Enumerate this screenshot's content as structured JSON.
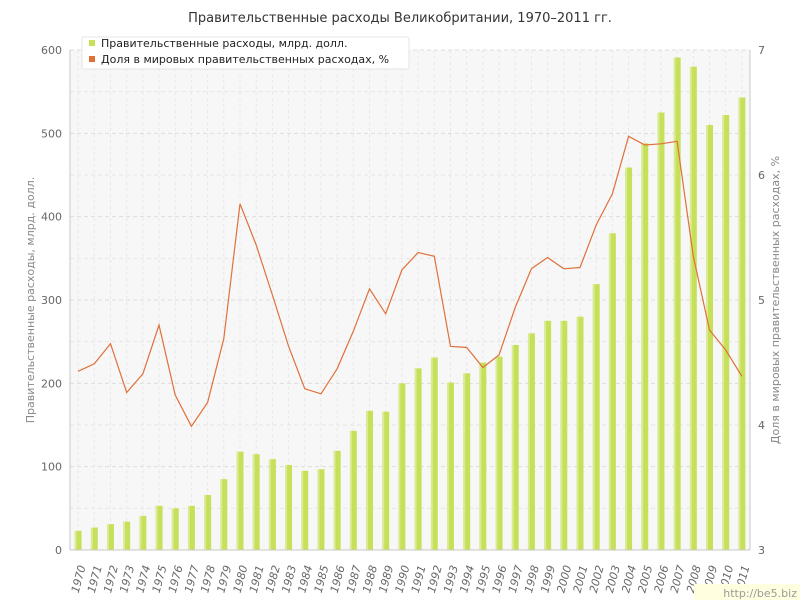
{
  "chart_data": {
    "type": "bar",
    "title": "Правительственные расходы Великобритании, 1970–2011 гг.",
    "categories": [
      "1970",
      "1971",
      "1972",
      "1973",
      "1974",
      "1975",
      "1976",
      "1977",
      "1978",
      "1979",
      "1980",
      "1981",
      "1982",
      "1983",
      "1984",
      "1985",
      "1986",
      "1987",
      "1988",
      "1989",
      "1990",
      "1991",
      "1992",
      "1993",
      "1994",
      "1995",
      "1996",
      "1997",
      "1998",
      "1999",
      "2000",
      "2001",
      "2002",
      "2003",
      "2004",
      "2005",
      "2006",
      "2007",
      "2008",
      "2009",
      "2010",
      "2011"
    ],
    "series": [
      {
        "name": "Правительственные расходы, млрд. долл.",
        "type": "bar",
        "axis": "left",
        "color": "#c6e05a",
        "values": [
          23,
          27,
          31,
          34,
          41,
          53,
          50,
          53,
          66,
          85,
          118,
          115,
          109,
          102,
          95,
          97,
          119,
          143,
          167,
          166,
          200,
          218,
          231,
          201,
          212,
          225,
          232,
          246,
          260,
          275,
          275,
          280,
          319,
          380,
          459,
          488,
          525,
          591,
          580,
          510,
          522,
          543
        ]
      },
      {
        "name": "Доля в мировых правительственных расходах, %",
        "type": "line",
        "axis": "right",
        "color": "#e0703a",
        "values": [
          4.43,
          4.49,
          4.65,
          4.26,
          4.41,
          4.8,
          4.24,
          3.99,
          4.18,
          4.69,
          5.77,
          5.44,
          5.04,
          4.63,
          4.29,
          4.25,
          4.45,
          4.75,
          5.09,
          4.89,
          5.24,
          5.38,
          5.35,
          4.63,
          4.62,
          4.46,
          4.56,
          4.94,
          5.25,
          5.34,
          5.25,
          5.26,
          5.6,
          5.85,
          6.31,
          6.24,
          6.25,
          6.27,
          5.35,
          4.76,
          4.6,
          4.39
        ]
      }
    ],
    "y_left": {
      "label": "Правительственные расходы, млрд. долл.",
      "min": 0,
      "max": 600,
      "ticks": [
        0,
        100,
        200,
        300,
        400,
        500,
        600
      ]
    },
    "y_right": {
      "label": "Доля в мировых правительственных расходах, %",
      "min": 3,
      "max": 7,
      "ticks": [
        3,
        4,
        5,
        6,
        7
      ]
    },
    "grid": true,
    "legend_position": "top-left"
  },
  "watermark": "http://be5.biz"
}
